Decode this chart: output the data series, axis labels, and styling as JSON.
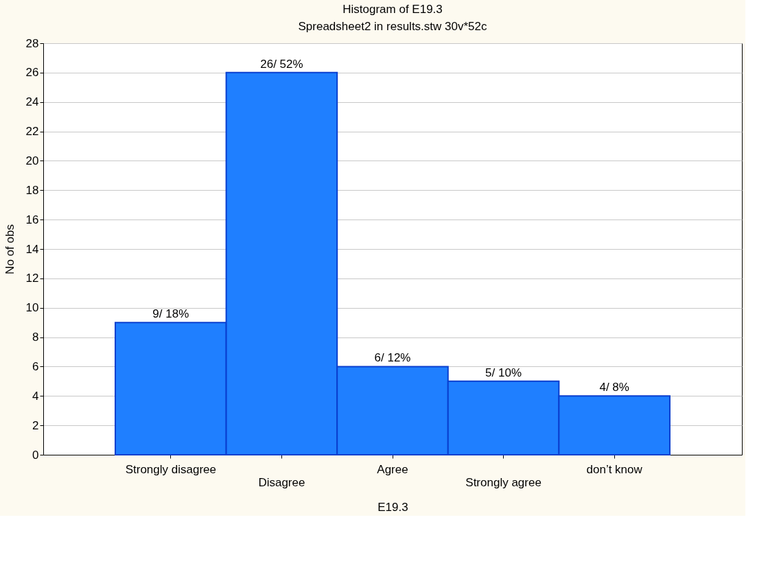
{
  "chart_data": {
    "type": "bar",
    "title": "Histogram of E19.3",
    "subtitle": "Spreadsheet2 in results.stw 30v*52c",
    "xlabel": "E19.3",
    "ylabel": "No of obs",
    "categories": [
      "Strongly disagree",
      "Disagree",
      "Agree",
      "Strongly agree",
      "don’t know"
    ],
    "values": [
      9,
      26,
      6,
      5,
      4
    ],
    "color": "#1f7fff",
    "value_labels": [
      "9/ 18%",
      "26/ 52%",
      "6/ 12%",
      "5/ 10%",
      "4/ 8%"
    ],
    "ylim": [
      0,
      28
    ],
    "yticks": [
      0,
      2,
      4,
      6,
      8,
      10,
      12,
      14,
      16,
      18,
      20,
      22,
      24,
      26,
      28
    ],
    "grid": "y"
  }
}
